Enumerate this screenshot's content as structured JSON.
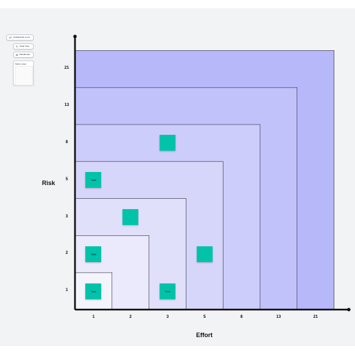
{
  "panel": {
    "buttons": [
      {
        "label": "Unlinked list to me",
        "icon": "link-icon"
      },
      {
        "label": "Clear Vote",
        "icon": "refresh-icon"
      },
      {
        "label": "Randomise",
        "icon": "shuffle-icon"
      }
    ],
    "notes_title": "Sticky notes"
  },
  "axes": {
    "x_label": "Effort",
    "y_label": "Risk",
    "x_ticks": [
      "1",
      "2",
      "3",
      "5",
      "8",
      "13",
      "21"
    ],
    "y_ticks": [
      "1",
      "2",
      "3",
      "5",
      "8",
      "13",
      "21"
    ]
  },
  "zone_colors": [
    "#f4f4fd",
    "#eaeafc",
    "#e0e0fb",
    "#d6d6fb",
    "#cccdfa",
    "#c1c2fa",
    "#b7b8fa"
  ],
  "sticky_color": "#00c3aa",
  "stickies": [
    {
      "label": "Task",
      "effort": 1,
      "risk": 1
    },
    {
      "label": "Task",
      "effort": 1,
      "risk": 2
    },
    {
      "label": "Task",
      "effort": 1,
      "risk": 5
    },
    {
      "label": "",
      "effort": 2,
      "risk": 3
    },
    {
      "label": "Task",
      "effort": 3,
      "risk": 1
    },
    {
      "label": "",
      "effort": 3,
      "risk": 8
    },
    {
      "label": "",
      "effort": 5,
      "risk": 2
    }
  ]
}
